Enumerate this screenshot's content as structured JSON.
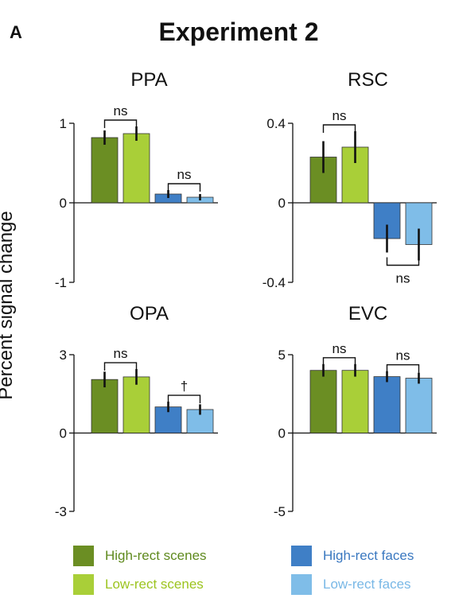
{
  "panel_letter": "A",
  "figure_title": "Experiment 2",
  "y_axis_label": "Percent signal change",
  "colors": {
    "high_scenes": "#6b8e23",
    "low_scenes": "#a9cf38",
    "high_faces": "#3f7fc6",
    "low_faces": "#7fbde8"
  },
  "legend": [
    {
      "label": "High-rect scenes",
      "color": "#6b8e23",
      "text_color": "#5f8a1e"
    },
    {
      "label": "Low-rect scenes",
      "color": "#a9cf38",
      "text_color": "#9cc41f"
    },
    {
      "label": "High-rect faces",
      "color": "#3f7fc6",
      "text_color": "#3a78c0"
    },
    {
      "label": "Low-rect faces",
      "color": "#7fbde8",
      "text_color": "#79b8e6"
    }
  ],
  "chart_data": [
    {
      "type": "bar",
      "title": "PPA",
      "categories": [
        "High-rect scenes",
        "Low-rect scenes",
        "High-rect faces",
        "Low-rect faces"
      ],
      "values": [
        0.82,
        0.87,
        0.11,
        0.07
      ],
      "errors": [
        0.09,
        0.09,
        0.05,
        0.04
      ],
      "ylim": [
        -1,
        1
      ],
      "yticks": [
        {
          "v": 1,
          "label": "1"
        },
        {
          "v": 0,
          "label": "0"
        },
        {
          "v": -1,
          "label": "-1"
        }
      ],
      "comparisons": [
        {
          "bars": [
            0,
            1
          ],
          "label": "ns",
          "side": "above"
        },
        {
          "bars": [
            2,
            3
          ],
          "label": "ns",
          "side": "above"
        }
      ]
    },
    {
      "type": "bar",
      "title": "RSC",
      "categories": [
        "High-rect scenes",
        "Low-rect scenes",
        "High-rect faces",
        "Low-rect faces"
      ],
      "values": [
        0.23,
        0.28,
        -0.18,
        -0.21
      ],
      "errors": [
        0.08,
        0.08,
        0.07,
        0.08
      ],
      "ylim": [
        -0.4,
        0.4
      ],
      "yticks": [
        {
          "v": 0.4,
          "label": "0.4"
        },
        {
          "v": 0,
          "label": "0"
        },
        {
          "v": -0.4,
          "label": "-0.4"
        }
      ],
      "comparisons": [
        {
          "bars": [
            0,
            1
          ],
          "label": "ns",
          "side": "above"
        },
        {
          "bars": [
            2,
            3
          ],
          "label": "ns",
          "side": "below"
        }
      ]
    },
    {
      "type": "bar",
      "title": "OPA",
      "categories": [
        "High-rect scenes",
        "Low-rect scenes",
        "High-rect faces",
        "Low-rect faces"
      ],
      "values": [
        2.05,
        2.15,
        1.0,
        0.9
      ],
      "errors": [
        0.3,
        0.3,
        0.2,
        0.2
      ],
      "ylim": [
        -3,
        3
      ],
      "yticks": [
        {
          "v": 3,
          "label": "3"
        },
        {
          "v": 0,
          "label": "0"
        },
        {
          "v": -3,
          "label": "-3"
        }
      ],
      "comparisons": [
        {
          "bars": [
            0,
            1
          ],
          "label": "ns",
          "side": "above"
        },
        {
          "bars": [
            2,
            3
          ],
          "label": "†",
          "side": "above"
        }
      ]
    },
    {
      "type": "bar",
      "title": "EVC",
      "categories": [
        "High-rect scenes",
        "Low-rect scenes",
        "High-rect faces",
        "Low-rect faces"
      ],
      "values": [
        4.0,
        4.0,
        3.6,
        3.5
      ],
      "errors": [
        0.4,
        0.4,
        0.35,
        0.35
      ],
      "ylim": [
        -5,
        5
      ],
      "yticks": [
        {
          "v": 5,
          "label": "5"
        },
        {
          "v": 0,
          "label": "0"
        },
        {
          "v": -5,
          "label": "-5"
        }
      ],
      "comparisons": [
        {
          "bars": [
            0,
            1
          ],
          "label": "ns",
          "side": "above"
        },
        {
          "bars": [
            2,
            3
          ],
          "label": "ns",
          "side": "above"
        }
      ]
    }
  ]
}
